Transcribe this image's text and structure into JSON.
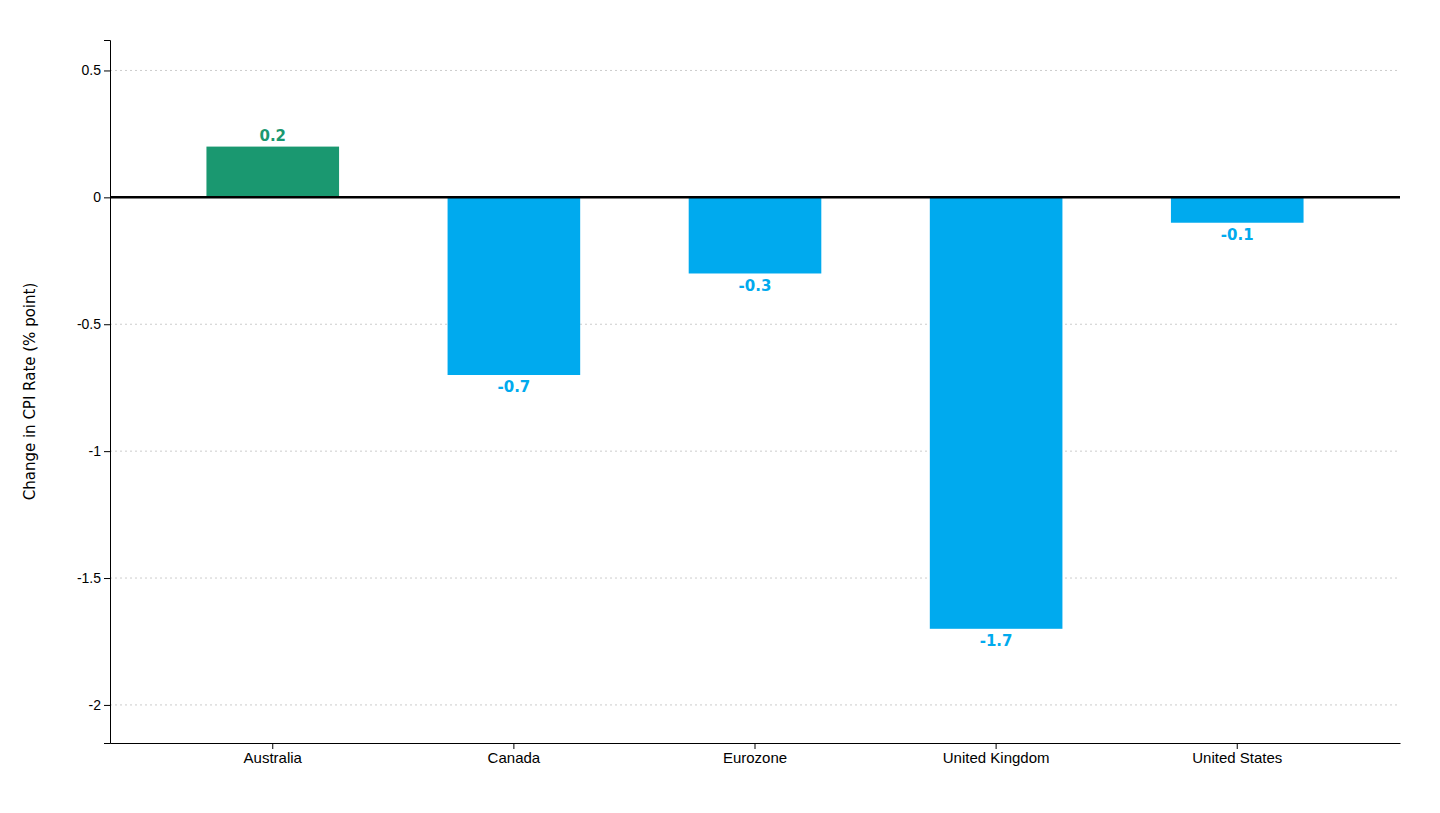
{
  "chart_data": {
    "type": "bar",
    "ylabel": "Change in CPI Rate (% point)",
    "categories": [
      "Australia",
      "Canada",
      "Eurozone",
      "United Kingdom",
      "United States"
    ],
    "values": [
      0.2,
      -0.7,
      -0.3,
      -1.7,
      -0.1
    ],
    "colors": [
      "#1a9870",
      "#00aaee",
      "#00aaee",
      "#00aaee",
      "#00aaee"
    ],
    "ylim": [
      -2.15,
      0.62
    ],
    "yticks": [
      0.5,
      0,
      -0.5,
      -1,
      -1.5,
      -2
    ],
    "grid": true,
    "data_labels": true
  }
}
